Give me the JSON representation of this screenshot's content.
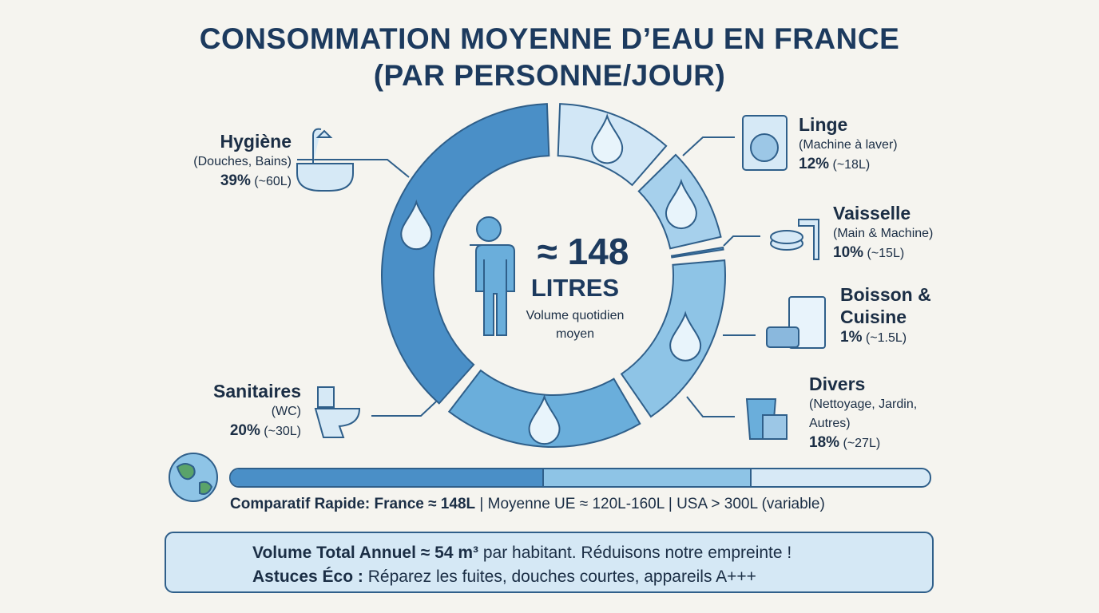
{
  "title": [
    "CONSOMMATION MOYENNE D’EAU EN FRANCE",
    "(PAR PERSONNE/JOUR)"
  ],
  "chart_data": {
    "type": "donut",
    "categories": [
      "Linge",
      "Vaisselle",
      "Boisson & Cuisine",
      "Divers",
      "Sanitaires",
      "Hygiène"
    ],
    "details": [
      "(Machine à laver)",
      "(Main & Machine)",
      null,
      "(Nettoyage, Jardin, Autres)",
      "(WC)",
      "(Douches, Bains)"
    ],
    "values": [
      12,
      10,
      1,
      18,
      20,
      39
    ],
    "value_labels": [
      "12%",
      "10%",
      "1%",
      "18%",
      "20%",
      "39%"
    ],
    "liters": [
      "(~18L)",
      "(~15L)",
      "(~1.5L)",
      "(~27L)",
      "(~30L)",
      "(~60L)"
    ],
    "colors": [
      "#d2e7f6",
      "#a6d0ec",
      "#5b9bd0",
      "#8ec4e6",
      "#6aaedb",
      "#4a8fc7"
    ]
  },
  "center": {
    "value": "≈ 148",
    "unit": "LITRES",
    "caption": "Volume quotidien moyen"
  },
  "comparison": {
    "bold": "Comparatif Rapide: France ≈ 148L",
    "rest": "| Moyenne UE ≈ 120L-160L | USA > 300L (variable)"
  },
  "footer": {
    "line1_bold": "Volume Total Annuel ≈ 54 m³",
    "line1_rest": "par habitant. Réduisons notre empreinte !",
    "line2_bold": "Astuces Éco :",
    "line2_rest": "Réparez les fuites, douches courtes, appareils A+++"
  }
}
